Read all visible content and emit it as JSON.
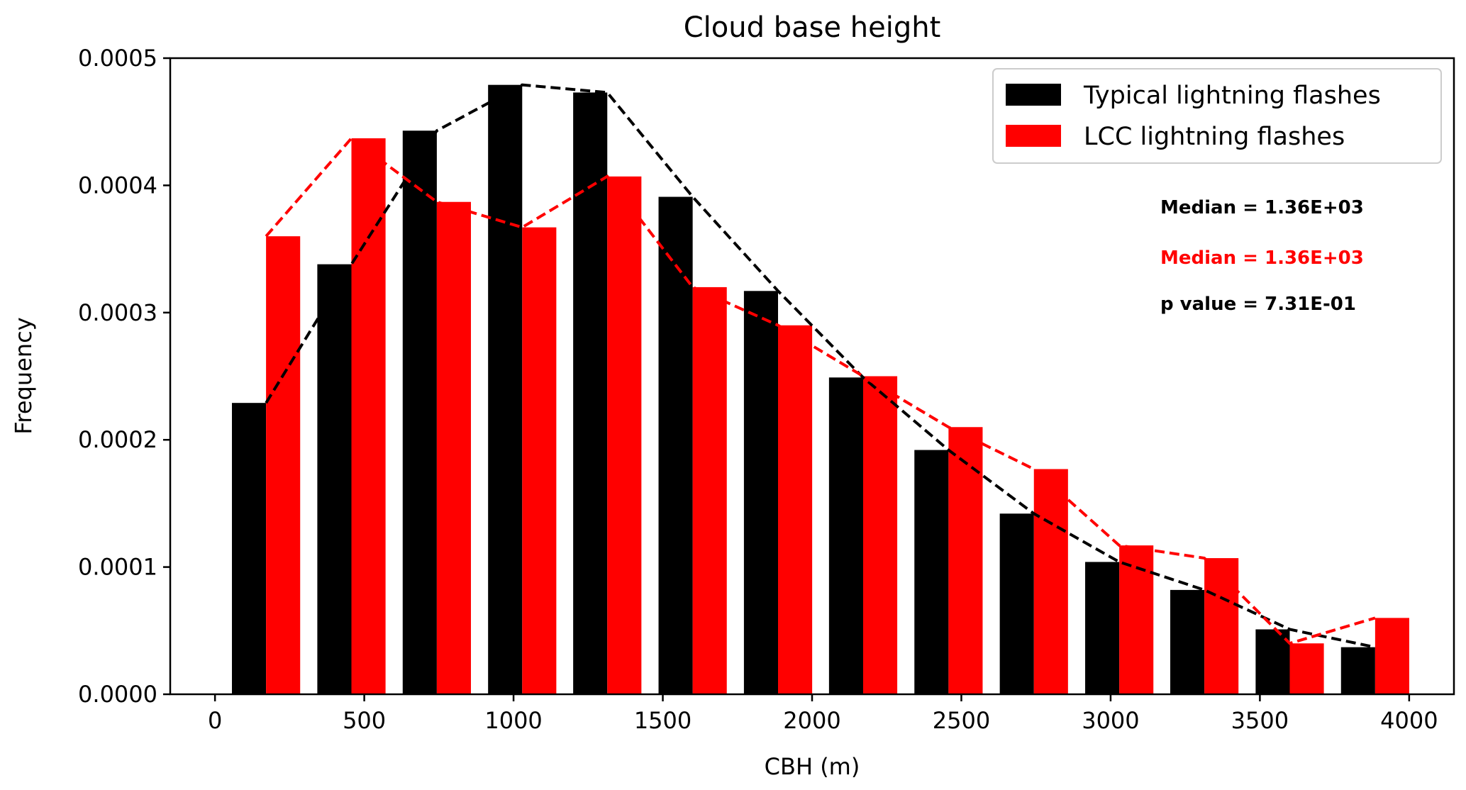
{
  "chart_data": {
    "type": "bar",
    "title": "Cloud base height",
    "xlabel": "CBH (m)",
    "ylabel": "Frequency",
    "xlim": [
      -150,
      4150
    ],
    "ylim": [
      0,
      0.0005
    ],
    "xticks": [
      0,
      500,
      1000,
      1500,
      2000,
      2500,
      3000,
      3500,
      4000
    ],
    "xtick_labels": [
      "0",
      "500",
      "1000",
      "1500",
      "2000",
      "2500",
      "3000",
      "3500",
      "4000"
    ],
    "yticks": [
      0,
      0.0001,
      0.0002,
      0.0003,
      0.0004,
      0.0005
    ],
    "ytick_labels": [
      "0.0000",
      "0.0001",
      "0.0002",
      "0.0003",
      "0.0004",
      "0.0005"
    ],
    "grid": false,
    "legend_position": "top-right",
    "bin_centers": [
      171,
      457,
      743,
      1029,
      1314,
      1600,
      1886,
      2171,
      2457,
      2743,
      3029,
      3314,
      3600,
      3886
    ],
    "series": [
      {
        "name": "Typical lightning flashes",
        "color": "#000000",
        "values": [
          0.000229,
          0.000338,
          0.000443,
          0.000479,
          0.000473,
          0.000391,
          0.000317,
          0.000249,
          0.000192,
          0.000142,
          0.000104,
          8.2e-05,
          5.1e-05,
          3.7e-05
        ]
      },
      {
        "name": "LCC lightning flashes",
        "color": "#ff0000",
        "values": [
          0.00036,
          0.000437,
          0.000387,
          0.000367,
          0.000407,
          0.00032,
          0.00029,
          0.00025,
          0.00021,
          0.000177,
          0.000117,
          0.000107,
          4e-05,
          6e-05
        ]
      }
    ],
    "annotations": [
      {
        "text": "Median = 1.36E+03",
        "color": "#000000"
      },
      {
        "text": "Median = 1.36E+03",
        "color": "#ff0000"
      },
      {
        "text": "p value = 7.31E-01",
        "color": "#000000"
      }
    ]
  }
}
